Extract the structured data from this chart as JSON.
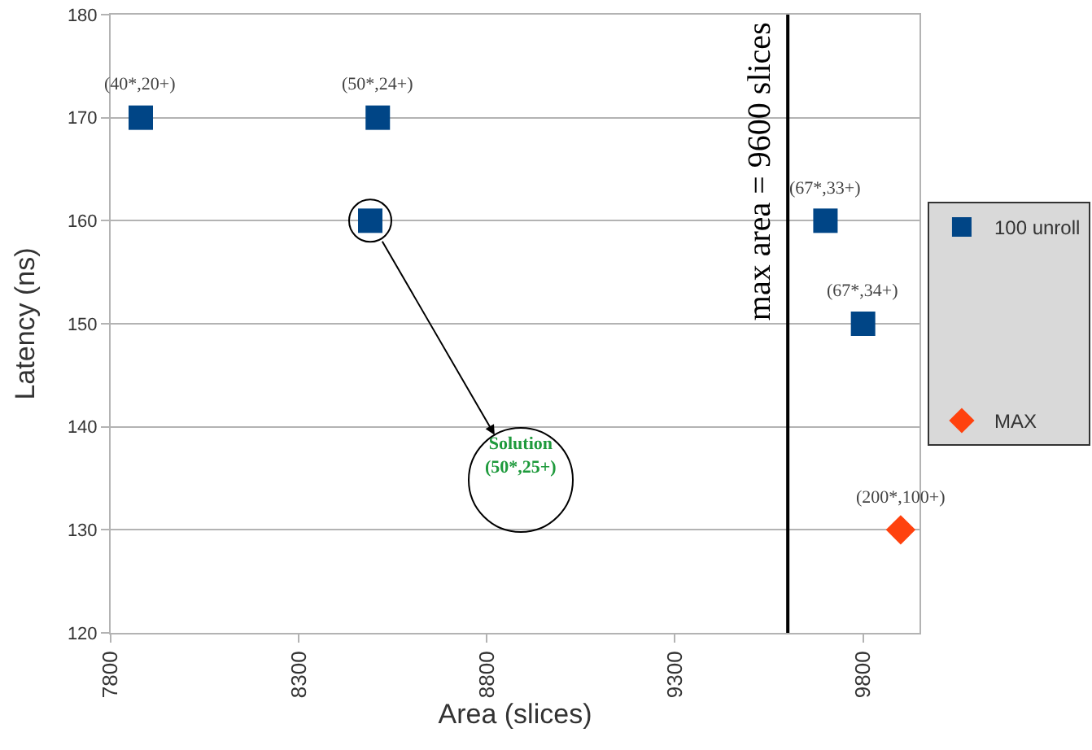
{
  "chart_data": {
    "type": "scatter",
    "xlabel": "Area (slices)",
    "ylabel": "Latency (ns)",
    "x": [
      7880,
      8510,
      8490,
      9700,
      9800
    ],
    "xlim": [
      7800,
      9950
    ],
    "xticks": [
      7800,
      8300,
      8800,
      9300,
      9800
    ],
    "ylim": [
      120,
      180
    ],
    "yticks": [
      120,
      130,
      140,
      150,
      160,
      170,
      180
    ],
    "series": [
      {
        "name": "100 unroll",
        "color": "#004586",
        "marker": "square",
        "values": [
          170,
          170,
          160,
          160,
          150
        ],
        "value_labels": [
          "(40*,20+)",
          "(50*,24+)",
          null,
          "(67*,33+)",
          "(67*,34+)"
        ]
      },
      {
        "name": "MAX",
        "color": "#ff420e",
        "marker": "diamond",
        "x": [
          9900
        ],
        "values": [
          130
        ],
        "value_labels": [
          "(200*,100+)"
        ]
      }
    ],
    "ref_lines": [
      {
        "axis": "x",
        "value": 9600,
        "label": "max area = 9600 slices",
        "color": "#000000"
      }
    ],
    "annotations": [
      "Solution\n(50*,25+)"
    ],
    "grid": "y",
    "legend": "right"
  }
}
